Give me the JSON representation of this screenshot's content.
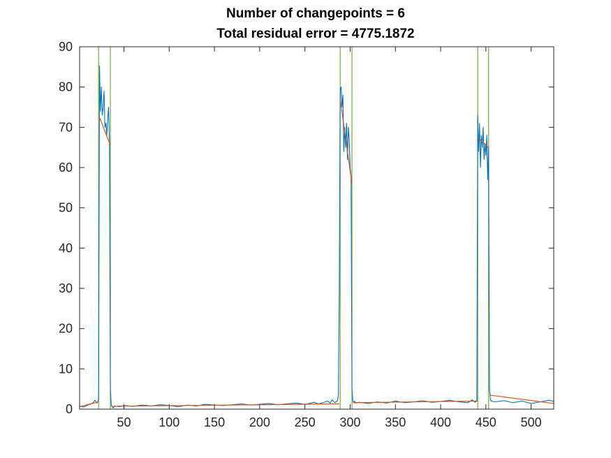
{
  "chart_data": {
    "type": "line",
    "title": [
      "Number of changepoints = 6",
      "Total residual error = 4775.1872"
    ],
    "xlabel": "",
    "ylabel": "",
    "xlim": [
      1,
      525
    ],
    "ylim": [
      0,
      90
    ],
    "xticks": [
      50,
      100,
      150,
      200,
      250,
      300,
      350,
      400,
      450,
      500
    ],
    "yticks": [
      0,
      10,
      20,
      30,
      40,
      50,
      60,
      70,
      80,
      90
    ],
    "grid": false,
    "legend": null,
    "colors": {
      "signal": "#0072BD",
      "fit": "#D95319",
      "changepoint": "#77AC30",
      "axes": "#262626"
    },
    "changepoints": [
      22,
      35,
      289,
      302,
      441,
      453
    ],
    "series": [
      {
        "role": "signal",
        "x": [
          1,
          5,
          10,
          15,
          18,
          20,
          21,
          22,
          23,
          24,
          25,
          26,
          27,
          28,
          29,
          30,
          31,
          32,
          33,
          34,
          35,
          36,
          37,
          38,
          40,
          45,
          50,
          60,
          70,
          80,
          90,
          100,
          110,
          120,
          130,
          140,
          150,
          160,
          170,
          180,
          190,
          200,
          210,
          220,
          230,
          240,
          250,
          255,
          260,
          265,
          270,
          275,
          278,
          280,
          283,
          286,
          287,
          288,
          289,
          290,
          291,
          292,
          293,
          294,
          295,
          296,
          297,
          298,
          299,
          300,
          301,
          302,
          303,
          304,
          305,
          306,
          310,
          320,
          330,
          340,
          350,
          360,
          370,
          380,
          390,
          400,
          410,
          420,
          430,
          435,
          438,
          440,
          441,
          442,
          443,
          444,
          445,
          446,
          447,
          448,
          449,
          450,
          451,
          452,
          453,
          454,
          455,
          456,
          460,
          470,
          480,
          490,
          500,
          510,
          520,
          525
        ],
        "y": [
          0.8,
          0.5,
          1.0,
          1.4,
          2.2,
          1.5,
          1.8,
          2.5,
          85.2,
          74.0,
          80.0,
          73.0,
          75.0,
          79.0,
          70.0,
          71.0,
          68.0,
          72.0,
          75.0,
          66.0,
          5.0,
          1.0,
          0.6,
          0.3,
          0.8,
          0.6,
          0.9,
          0.7,
          1.0,
          0.8,
          1.1,
          0.9,
          0.6,
          1.0,
          0.8,
          1.2,
          1.0,
          0.9,
          1.1,
          1.3,
          1.0,
          1.2,
          1.4,
          1.1,
          1.3,
          1.5,
          1.2,
          1.4,
          1.7,
          1.3,
          1.6,
          2.0,
          1.5,
          2.3,
          1.6,
          2.1,
          3.5,
          30.0,
          79.5,
          80.0,
          75.0,
          78.0,
          64.0,
          70.0,
          65.0,
          71.0,
          62.0,
          70.0,
          67.0,
          60.0,
          58.0,
          5.0,
          2.0,
          1.6,
          2.0,
          1.5,
          1.7,
          1.4,
          1.8,
          1.5,
          2.0,
          1.6,
          1.8,
          2.1,
          1.7,
          1.9,
          2.2,
          1.8,
          1.6,
          2.3,
          1.7,
          2.0,
          73.0,
          64.0,
          71.0,
          60.0,
          68.0,
          65.0,
          70.0,
          62.0,
          66.0,
          63.0,
          68.0,
          57.0,
          65.0,
          5.0,
          2.5,
          2.0,
          1.8,
          2.1,
          1.6,
          2.0,
          1.4,
          1.8,
          2.2,
          1.9
        ]
      },
      {
        "role": "fit",
        "segments": [
          {
            "x": [
              1,
              22
            ],
            "y": [
              0.6,
              1.8
            ]
          },
          {
            "x": [
              23,
              35
            ],
            "y": [
              72.5,
              65.5
            ]
          },
          {
            "x": [
              36,
              288
            ],
            "y": [
              0.7,
              1.3
            ]
          },
          {
            "x": [
              289,
              302
            ],
            "y": [
              77.0,
              56.0
            ]
          },
          {
            "x": [
              303,
              440
            ],
            "y": [
              1.6,
              2.0
            ]
          },
          {
            "x": [
              441,
              453
            ],
            "y": [
              67.5,
              65.0
            ]
          },
          {
            "x": [
              454,
              525
            ],
            "y": [
              3.5,
              1.4
            ]
          }
        ]
      }
    ]
  }
}
